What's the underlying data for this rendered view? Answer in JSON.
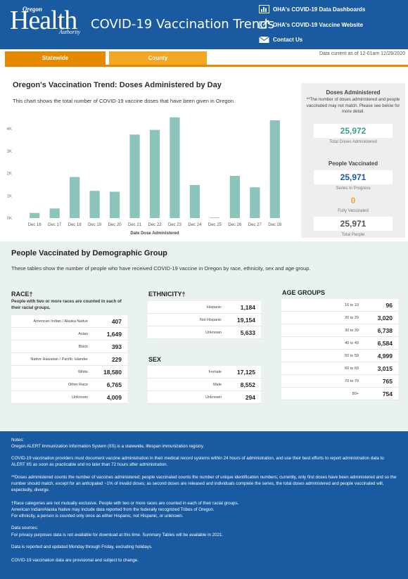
{
  "header": {
    "logo": {
      "line1": "Oregon",
      "line2": "Health",
      "line3": "Authority"
    },
    "title": "COVID-19 Vaccination Trends",
    "links": [
      {
        "label": "OHA's COVID-19 Data Dashboards",
        "icon": "bar-chart-icon"
      },
      {
        "label": "OHA's COVID-19 Vaccine Website",
        "icon": "external-link-icon"
      },
      {
        "label": "Contact Us",
        "icon": "envelope-icon"
      }
    ]
  },
  "tabs": [
    {
      "label": "Statewide",
      "active": true
    },
    {
      "label": "County",
      "active": false
    }
  ],
  "data_current": "Data current as of 12-01am 12/29/2020",
  "chart_section": {
    "title": "Oregon's Vaccination Trend: Doses Administered by Day",
    "description": "This chart shows the total number of COVID-19 vaccine doses that have been given in Oregon."
  },
  "chart_data": {
    "type": "bar",
    "categories": [
      "Dec 16",
      "Dec 17",
      "Dec 18",
      "Dec 19",
      "Dec 20",
      "Dec 21",
      "Dec 22",
      "Dec 23",
      "Dec 24",
      "Dec 25",
      "Dec 26",
      "Dec 27",
      "Dec 28"
    ],
    "values": [
      230,
      430,
      1840,
      1220,
      1180,
      3740,
      3950,
      4510,
      1480,
      20,
      1890,
      1380,
      4380
    ],
    "xlabel": "Date Dose Administered",
    "ylabel": "",
    "ylim": [
      0,
      4600
    ],
    "yticks": [
      0,
      1000,
      2000,
      3000,
      4000
    ],
    "ytick_labels": [
      "0K",
      "1K",
      "2K",
      "3K",
      "4K"
    ],
    "grid": false,
    "bar_color": "#8cc3bb"
  },
  "panel": {
    "doses_title": "Doses Administered",
    "doses_note": "**The number of doses administered and people vaccinated may not match. Please see below for more detail.",
    "total_doses": "25,972",
    "total_doses_label": "Total Doses Administered",
    "people_title": "People Vaccinated",
    "series_in_progress": "25,971",
    "series_in_progress_label": "Series In Progress",
    "fully_vaccinated": "0",
    "fully_vaccinated_label": "Fully Vaccinated",
    "total_people": "25,971",
    "total_people_label": "Total People",
    "colors": {
      "doses": "#3b9e8f",
      "series": "#1a5aa0",
      "fully": "#f5a623",
      "total": "#555555"
    }
  },
  "demographics": {
    "title": "People Vaccinated by Demographic Group",
    "description": "These tables show the number of people who have received COVID-19 vaccine in Oregon by race, ethnicity, sex and age group.",
    "race": {
      "title": "RACE†",
      "note": "People with two or more races are counted in each of their racial groups.",
      "rows": [
        {
          "cat": "American Indian / Alaska Native",
          "num": "407"
        },
        {
          "cat": "Asian",
          "num": "1,649"
        },
        {
          "cat": "Black",
          "num": "393"
        },
        {
          "cat": "Native Hawaiian / Pacific Islander",
          "num": "229"
        },
        {
          "cat": "White",
          "num": "18,580"
        },
        {
          "cat": "Other Race",
          "num": "6,765"
        },
        {
          "cat": "Unknown",
          "num": "4,009"
        }
      ]
    },
    "ethnicity": {
      "title": "ETHNICITY†",
      "rows": [
        {
          "cat": "Hispanic",
          "num": "1,184"
        },
        {
          "cat": "Not Hispanic",
          "num": "19,154"
        },
        {
          "cat": "Unknown",
          "num": "5,633"
        }
      ]
    },
    "sex": {
      "title": "SEX",
      "rows": [
        {
          "cat": "Female",
          "num": "17,125"
        },
        {
          "cat": "Male",
          "num": "8,552"
        },
        {
          "cat": "Unknown",
          "num": "294"
        }
      ]
    },
    "age": {
      "title": "AGE GROUPS",
      "rows": [
        {
          "cat": "16 to 19",
          "num": "96"
        },
        {
          "cat": "20 to 29",
          "num": "3,020"
        },
        {
          "cat": "30 to 39",
          "num": "6,738"
        },
        {
          "cat": "40 to 49",
          "num": "6,584"
        },
        {
          "cat": "50 to 59",
          "num": "4,999"
        },
        {
          "cat": "60 to 69",
          "num": "3,015"
        },
        {
          "cat": "70 to 79",
          "num": "765"
        },
        {
          "cat": "80+",
          "num": "754"
        }
      ]
    }
  },
  "footer": {
    "notes_heading": "Notes:",
    "notes_1": "Oregon ALERT Immunization Information System (IIS) is a statewide, lifespan immunization registry.",
    "notes_2": "COVID-19 vaccination providers must document vaccine administration in their medical record systems within 24 hours of administration, and use their best efforts to report administration data to ALERT IIS as soon as practicable and no later than 72 hours after administration.",
    "notes_3": "**Doses administered counts the number of vaccines administered; people vaccinated counts the number of unique identification numbers; currently, only first doses have been administered and so the number should match, except for an anticipated ~1% of invalid doses; as second doses are released and individuals complete the series, the total doses administered and people vaccinated will, expectedly, diverge.",
    "notes_4": "†Race categories are not mutually exclusive. People with two or more races are counted in each of their racial groups.\nAmerican Indian/Alaska Native may include data reported from the federally recognized Tribes of Oregon.\nFor ethnicity, a person is counted only once as either Hispanic, not Hispanic, or unknown.",
    "sources_heading": "Data sources:",
    "sources_1": "For privacy purposes data is not available for download at this time. Summary Tables will be available in 2021.",
    "sources_2": "Data is reported and updated Monday through Friday, excluding holidays.",
    "sources_3": "COVID-19 vaccination data are provisional and subject to change."
  }
}
